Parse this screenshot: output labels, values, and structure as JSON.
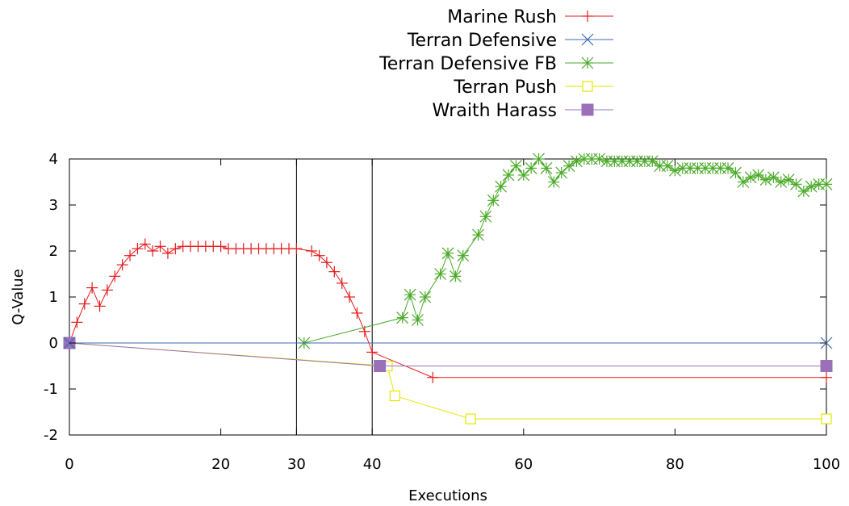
{
  "chart_data": {
    "type": "line",
    "xlabel": "Executions",
    "ylabel": "Q-Value",
    "xlim": [
      0,
      100
    ],
    "ylim": [
      -2,
      4
    ],
    "xticks": [
      0,
      20,
      30,
      40,
      60,
      80,
      100
    ],
    "yticks": [
      -2,
      -1,
      0,
      1,
      2,
      3,
      4
    ],
    "vertical_lines": [
      30,
      40
    ],
    "grid": false,
    "legend_position": "top-right, above plot",
    "series": [
      {
        "name": "Marine Rush",
        "color": "#e41a1c",
        "marker": "plus",
        "points": [
          [
            0,
            0
          ],
          [
            1,
            0.45
          ],
          [
            2,
            0.85
          ],
          [
            3,
            1.2
          ],
          [
            4,
            0.8
          ],
          [
            5,
            1.15
          ],
          [
            6,
            1.45
          ],
          [
            7,
            1.7
          ],
          [
            8,
            1.9
          ],
          [
            9,
            2.05
          ],
          [
            10,
            2.15
          ],
          [
            11,
            2.0
          ],
          [
            12,
            2.1
          ],
          [
            13,
            1.95
          ],
          [
            14,
            2.05
          ],
          [
            15,
            2.1
          ],
          [
            16,
            2.1
          ],
          [
            17,
            2.1
          ],
          [
            18,
            2.1
          ],
          [
            19,
            2.1
          ],
          [
            20,
            2.1
          ],
          [
            21,
            2.05
          ],
          [
            22,
            2.05
          ],
          [
            23,
            2.05
          ],
          [
            24,
            2.05
          ],
          [
            25,
            2.05
          ],
          [
            26,
            2.05
          ],
          [
            27,
            2.05
          ],
          [
            28,
            2.05
          ],
          [
            29,
            2.05
          ],
          [
            30,
            2.05
          ],
          [
            32,
            2.0
          ],
          [
            33,
            1.9
          ],
          [
            34,
            1.75
          ],
          [
            35,
            1.55
          ],
          [
            36,
            1.3
          ],
          [
            37,
            1.0
          ],
          [
            38,
            0.65
          ],
          [
            39,
            0.25
          ],
          [
            40,
            -0.2
          ],
          [
            48,
            -0.75
          ],
          [
            100,
            -0.75
          ]
        ]
      },
      {
        "name": "Terran Defensive",
        "color": "#3c6ab4",
        "marker": "x",
        "points": [
          [
            0,
            0
          ],
          [
            100,
            0
          ]
        ]
      },
      {
        "name": "Terran Defensive FB",
        "color": "#4aaa28",
        "marker": "star",
        "points": [
          [
            0,
            0
          ],
          [
            31,
            0
          ],
          [
            44,
            0.55
          ],
          [
            45,
            1.05
          ],
          [
            46,
            0.5
          ],
          [
            47,
            1.0
          ],
          [
            49,
            1.5
          ],
          [
            50,
            1.95
          ],
          [
            51,
            1.45
          ],
          [
            52,
            1.9
          ],
          [
            54,
            2.35
          ],
          [
            55,
            2.75
          ],
          [
            56,
            3.1
          ],
          [
            57,
            3.4
          ],
          [
            58,
            3.65
          ],
          [
            59,
            3.85
          ],
          [
            60,
            3.65
          ],
          [
            61,
            3.8
          ],
          [
            62,
            4.0
          ],
          [
            63,
            3.8
          ],
          [
            64,
            3.5
          ],
          [
            65,
            3.7
          ],
          [
            66,
            3.85
          ],
          [
            67,
            3.95
          ],
          [
            68,
            4.0
          ],
          [
            69,
            4.0
          ],
          [
            70,
            4.0
          ],
          [
            71,
            3.95
          ],
          [
            72,
            3.95
          ],
          [
            73,
            3.95
          ],
          [
            74,
            3.95
          ],
          [
            75,
            3.95
          ],
          [
            76,
            3.95
          ],
          [
            77,
            3.95
          ],
          [
            78,
            3.85
          ],
          [
            79,
            3.85
          ],
          [
            80,
            3.75
          ],
          [
            81,
            3.8
          ],
          [
            82,
            3.8
          ],
          [
            83,
            3.8
          ],
          [
            84,
            3.8
          ],
          [
            85,
            3.8
          ],
          [
            86,
            3.8
          ],
          [
            87,
            3.8
          ],
          [
            88,
            3.7
          ],
          [
            89,
            3.5
          ],
          [
            90,
            3.6
          ],
          [
            91,
            3.65
          ],
          [
            92,
            3.55
          ],
          [
            93,
            3.6
          ],
          [
            94,
            3.5
          ],
          [
            95,
            3.55
          ],
          [
            96,
            3.45
          ],
          [
            97,
            3.3
          ],
          [
            98,
            3.4
          ],
          [
            99,
            3.45
          ],
          [
            100,
            3.45
          ]
        ]
      },
      {
        "name": "Terran Push",
        "color": "#e6e600",
        "marker": "square-open",
        "points": [
          [
            0,
            0
          ],
          [
            42,
            -0.5
          ],
          [
            43,
            -1.15
          ],
          [
            53,
            -1.65
          ],
          [
            100,
            -1.65
          ]
        ]
      },
      {
        "name": "Wraith Harass",
        "color": "#9a70b8",
        "marker": "square-filled",
        "points": [
          [
            0,
            0
          ],
          [
            41,
            -0.5
          ],
          [
            100,
            -0.5
          ]
        ]
      }
    ]
  }
}
